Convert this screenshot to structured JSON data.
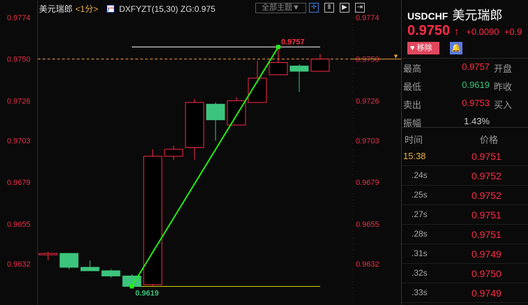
{
  "header": {
    "name": "美元瑞郎",
    "period": "<1分>",
    "indicator": "DXFYZT(15,30) ZG:0.975",
    "theme_button": "全部主题▼",
    "tools": [
      "crosshair-icon",
      "range-icon",
      "play-icon",
      "export-icon"
    ]
  },
  "chart_data": {
    "type": "candlestick",
    "y_ticks": [
      0.9774,
      0.975,
      0.9726,
      0.9703,
      0.9679,
      0.9655,
      0.9632
    ],
    "ylim": [
      0.9616,
      0.9774
    ],
    "candles": [
      {
        "o": 0.9638,
        "h": 0.9639,
        "l": 0.9634,
        "c": 0.9638
      },
      {
        "o": 0.9638,
        "h": 0.9638,
        "l": 0.9629,
        "c": 0.963
      },
      {
        "o": 0.963,
        "h": 0.9634,
        "l": 0.9628,
        "c": 0.9628
      },
      {
        "o": 0.9628,
        "h": 0.9629,
        "l": 0.9624,
        "c": 0.9625
      },
      {
        "o": 0.9625,
        "h": 0.9626,
        "l": 0.9619,
        "c": 0.9619
      },
      {
        "o": 0.962,
        "h": 0.9698,
        "l": 0.9619,
        "c": 0.9694
      },
      {
        "o": 0.9694,
        "h": 0.97,
        "l": 0.9692,
        "c": 0.9698
      },
      {
        "o": 0.9699,
        "h": 0.9727,
        "l": 0.9692,
        "c": 0.9725
      },
      {
        "o": 0.9724,
        "h": 0.9725,
        "l": 0.9703,
        "c": 0.9715
      },
      {
        "o": 0.9712,
        "h": 0.9728,
        "l": 0.9712,
        "c": 0.9726
      },
      {
        "o": 0.9725,
        "h": 0.9749,
        "l": 0.9725,
        "c": 0.9739
      },
      {
        "o": 0.9741,
        "h": 0.9757,
        "l": 0.9741,
        "c": 0.9748
      },
      {
        "o": 0.9746,
        "h": 0.9747,
        "l": 0.9731,
        "c": 0.9743
      },
      {
        "o": 0.9743,
        "h": 0.9753,
        "l": 0.9743,
        "c": 0.975
      }
    ],
    "current_price": 0.975,
    "high_label": "0.9757",
    "low_label": "0.9619",
    "high": 0.9757,
    "low": 0.9619,
    "colors": {
      "up": "#ff2c45",
      "down": "#3cc47c",
      "trend": "#22ee11",
      "current": "#e8a040",
      "hi_line": "#ffffff",
      "lo_line": "#dddd00"
    }
  },
  "quote": {
    "symbol": "USDCHF",
    "name": "美元瑞郎",
    "price": "0.9750",
    "arrow": "↑",
    "change": "+0.0090",
    "change_pct": "+0.9",
    "remove": "移除",
    "stats": [
      {
        "label": "最高",
        "value": "0.9757",
        "color": "#ff2c45",
        "right": "开盘"
      },
      {
        "label": "最低",
        "value": "0.9619",
        "color": "#3cc47c",
        "right": "昨收"
      },
      {
        "label": "卖出",
        "value": "0.9753",
        "color": "#ff2c45",
        "right": "买入"
      },
      {
        "label": "振幅",
        "value": "1.43%",
        "color": "#ccc",
        "right": ""
      }
    ]
  },
  "ticks": {
    "time_header": "时间",
    "price_header": "价格",
    "rows": [
      {
        "t": "15:38",
        "p": "0.9751"
      },
      {
        "t": ".24s",
        "p": "0.9752"
      },
      {
        "t": ".25s",
        "p": "0.9752"
      },
      {
        "t": ".27s",
        "p": "0.9751"
      },
      {
        "t": ".28s",
        "p": "0.9751"
      },
      {
        "t": ".31s",
        "p": "0.9749"
      },
      {
        "t": ".32s",
        "p": "0.9750"
      },
      {
        "t": ".33s",
        "p": "0.9749"
      }
    ]
  }
}
